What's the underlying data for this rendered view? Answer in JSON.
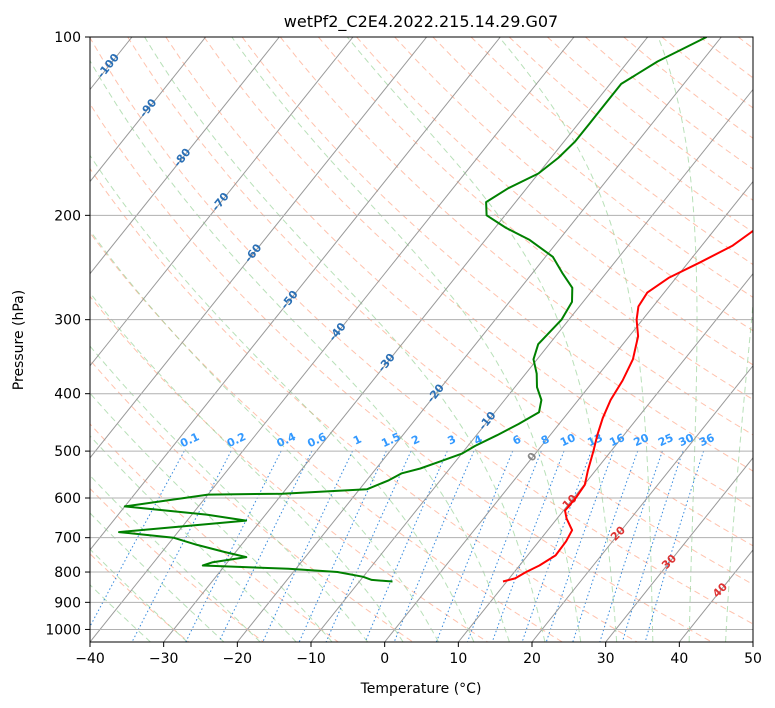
{
  "chart_data": {
    "type": "line",
    "title": "wetPf2_C2E4.2022.215.14.29.G07",
    "xlabel": "Temperature (°C)",
    "ylabel": "Pressure (hPa)",
    "xlim": [
      -40,
      50
    ],
    "ylim": [
      1050,
      100
    ],
    "x_ticks": [
      -40,
      -30,
      -20,
      -10,
      0,
      10,
      20,
      30,
      40,
      50
    ],
    "y_ticks": [
      100,
      200,
      300,
      400,
      500,
      600,
      700,
      800,
      900,
      1000
    ],
    "grid": true,
    "colors": {
      "temperature": "#ff0000",
      "dewpoint": "#008000",
      "dry_adiabat": "#ff9977",
      "moist_adiabat": "#88cc88",
      "mixing_ratio": "#3388dd",
      "isotherm": "#999999",
      "isotherm_label": "#2a6fb5",
      "mixing_label": "#3399ff",
      "dry_label": "#dd3333",
      "grid": "#b0b0b0"
    },
    "series": [
      {
        "name": "Temperature",
        "color": "#ff0000",
        "points": [
          {
            "p": 830,
            "t": 9.5
          },
          {
            "p": 820,
            "t": 10.8
          },
          {
            "p": 800,
            "t": 11.6
          },
          {
            "p": 780,
            "t": 12.7
          },
          {
            "p": 750,
            "t": 13.8
          },
          {
            "p": 710,
            "t": 13.7
          },
          {
            "p": 680,
            "t": 13.3
          },
          {
            "p": 650,
            "t": 11.3
          },
          {
            "p": 630,
            "t": 10.2
          },
          {
            "p": 600,
            "t": 10.3
          },
          {
            "p": 570,
            "t": 10.1
          },
          {
            "p": 540,
            "t": 9.0
          },
          {
            "p": 500,
            "t": 7.6
          },
          {
            "p": 470,
            "t": 6.4
          },
          {
            "p": 440,
            "t": 5.3
          },
          {
            "p": 410,
            "t": 4.4
          },
          {
            "p": 380,
            "t": 3.9
          },
          {
            "p": 350,
            "t": 3.0
          },
          {
            "p": 320,
            "t": 1.2
          },
          {
            "p": 300,
            "t": -0.8
          },
          {
            "p": 285,
            "t": -2.0
          },
          {
            "p": 270,
            "t": -2.3
          },
          {
            "p": 255,
            "t": -1.0
          },
          {
            "p": 240,
            "t": 1.6
          },
          {
            "p": 225,
            "t": 4.2
          },
          {
            "p": 210,
            "t": 5.6
          },
          {
            "p": 195,
            "t": 6.1
          },
          {
            "p": 180,
            "t": 6.5
          },
          {
            "p": 165,
            "t": 7.3
          },
          {
            "p": 150,
            "t": 9.8
          },
          {
            "p": 135,
            "t": 11.7
          },
          {
            "p": 125,
            "t": 12.6
          },
          {
            "p": 115,
            "t": 14.4
          },
          {
            "p": 100,
            "t": 18.2
          }
        ]
      },
      {
        "name": "Dewpoint",
        "color": "#008000",
        "points": [
          {
            "p": 830,
            "t": -5.5
          },
          {
            "p": 825,
            "t": -8.5
          },
          {
            "p": 815,
            "t": -10.0
          },
          {
            "p": 800,
            "t": -14.0
          },
          {
            "p": 790,
            "t": -21.0
          },
          {
            "p": 780,
            "t": -33.0
          },
          {
            "p": 770,
            "t": -32.0
          },
          {
            "p": 755,
            "t": -28.0
          },
          {
            "p": 740,
            "t": -31.5
          },
          {
            "p": 720,
            "t": -36.0
          },
          {
            "p": 700,
            "t": -40.0
          },
          {
            "p": 685,
            "t": -48.0
          },
          {
            "p": 670,
            "t": -40.0
          },
          {
            "p": 655,
            "t": -32.0
          },
          {
            "p": 640,
            "t": -38.0
          },
          {
            "p": 620,
            "t": -50.0
          },
          {
            "p": 592,
            "t": -40.0
          },
          {
            "p": 590,
            "t": -30.0
          },
          {
            "p": 580,
            "t": -19.0
          },
          {
            "p": 560,
            "t": -17.0
          },
          {
            "p": 545,
            "t": -16.0
          },
          {
            "p": 535,
            "t": -14.0
          },
          {
            "p": 520,
            "t": -12.0
          },
          {
            "p": 505,
            "t": -10.0
          },
          {
            "p": 490,
            "t": -9.0
          },
          {
            "p": 470,
            "t": -7.2
          },
          {
            "p": 450,
            "t": -5.5
          },
          {
            "p": 430,
            "t": -4.0
          },
          {
            "p": 410,
            "t": -5.0
          },
          {
            "p": 390,
            "t": -7.0
          },
          {
            "p": 370,
            "t": -8.5
          },
          {
            "p": 350,
            "t": -10.5
          },
          {
            "p": 330,
            "t": -11.5
          },
          {
            "p": 300,
            "t": -11.0
          },
          {
            "p": 280,
            "t": -11.5
          },
          {
            "p": 265,
            "t": -13.0
          },
          {
            "p": 250,
            "t": -16.0
          },
          {
            "p": 235,
            "t": -19.0
          },
          {
            "p": 220,
            "t": -24.0
          },
          {
            "p": 210,
            "t": -28.5
          },
          {
            "p": 200,
            "t": -32.5
          },
          {
            "p": 190,
            "t": -34.0
          },
          {
            "p": 180,
            "t": -32.5
          },
          {
            "p": 170,
            "t": -30.0
          },
          {
            "p": 160,
            "t": -29.0
          },
          {
            "p": 150,
            "t": -28.5
          },
          {
            "p": 140,
            "t": -28.5
          },
          {
            "p": 130,
            "t": -28.5
          },
          {
            "p": 120,
            "t": -28.5
          },
          {
            "p": 110,
            "t": -26.0
          },
          {
            "p": 100,
            "t": -22.0
          }
        ]
      }
    ],
    "isotherm_labels": [
      {
        "text": "-100",
        "t": -100,
        "p": 112
      },
      {
        "text": "-90",
        "t": -90,
        "p": 132
      },
      {
        "text": "-80",
        "t": -80,
        "p": 160
      },
      {
        "text": "-70",
        "t": -70,
        "p": 190
      },
      {
        "text": "-60",
        "t": -60,
        "p": 232
      },
      {
        "text": "-50",
        "t": -50,
        "p": 278
      },
      {
        "text": "-40",
        "t": -40,
        "p": 315
      },
      {
        "text": "-30",
        "t": -30,
        "p": 355
      },
      {
        "text": "-20",
        "t": -20,
        "p": 400
      },
      {
        "text": "-10",
        "t": -10,
        "p": 445
      },
      {
        "text": "0",
        "t": 0,
        "p": 512
      }
    ],
    "mixing_ratio_labels": [
      "0.1",
      "0.2",
      "0.4",
      "0.6",
      "1",
      "1.5",
      "2",
      "3",
      "4",
      "6",
      "8",
      "10",
      "13",
      "16",
      "20",
      "25",
      "30",
      "36"
    ],
    "mixing_ratio_values": [
      0.1,
      0.2,
      0.4,
      0.6,
      1,
      1.5,
      2,
      3,
      4,
      6,
      8,
      10,
      13,
      16,
      20,
      25,
      30,
      36
    ],
    "mixing_ratio_label_pressure": 480,
    "dry_adiabat_labels": [
      {
        "text": "10",
        "t": 10,
        "p": 610
      },
      {
        "text": "20",
        "t": 20,
        "p": 690
      },
      {
        "text": "30",
        "t": 30,
        "p": 770
      },
      {
        "text": "40",
        "t": 40,
        "p": 860
      }
    ]
  }
}
